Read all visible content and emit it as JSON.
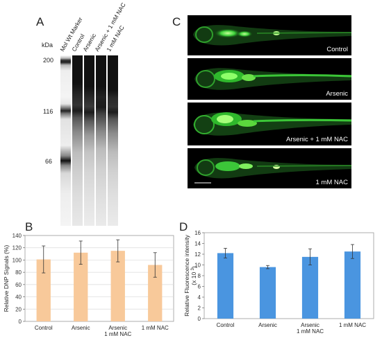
{
  "figure": {
    "panel_labels": {
      "a": "A",
      "b": "B",
      "c": "C",
      "d": "D"
    }
  },
  "gel": {
    "unit_label": "kDa",
    "lanes": [
      "Mol Wt Marker",
      "Control",
      "Arsenic",
      "Arsenic + 1 mM NAC",
      "1 mM NAC"
    ],
    "mw_markers": [
      "200",
      "116",
      "66"
    ]
  },
  "images": {
    "panels": [
      {
        "label": "Control"
      },
      {
        "label": "Arsenic"
      },
      {
        "label": "Arsenic + 1 mM NAC"
      },
      {
        "label": "1 mM NAC"
      }
    ],
    "fluorescence_color": "#3dd13a"
  },
  "chart_data": [
    {
      "type": "bar",
      "panel": "B",
      "categories": [
        "Control",
        "Arsenic",
        "Arsenic\n1 mM NAC",
        "1 mM NAC"
      ],
      "values": [
        101,
        112,
        115,
        92
      ],
      "errors": [
        22,
        19,
        18,
        20
      ],
      "ylabel": "Relative DNP Signals (%)",
      "ylim": [
        0,
        140
      ],
      "yticks": [
        "0",
        "20",
        "40",
        "60",
        "80",
        "100",
        "120",
        "140"
      ],
      "grid": true,
      "color": "#f8c99a"
    },
    {
      "type": "bar",
      "panel": "D",
      "categories": [
        "Control",
        "Arsenic",
        "Arsenic\n1 mM NAC",
        "1 mM NAC"
      ],
      "values": [
        12.2,
        9.6,
        11.5,
        12.5
      ],
      "errors": [
        0.9,
        0.3,
        1.5,
        1.3
      ],
      "ylabel": "Relative Fluorescence intensity",
      "ylabel2": "(x 10",
      "ylabel2_sup": "3",
      "ylabel2_end": ")",
      "ylim": [
        0,
        16
      ],
      "yticks": [
        "0",
        "2",
        "4",
        "6",
        "8",
        "10",
        "12",
        "14",
        "16"
      ],
      "grid": false,
      "color": "#4a95e0"
    }
  ]
}
